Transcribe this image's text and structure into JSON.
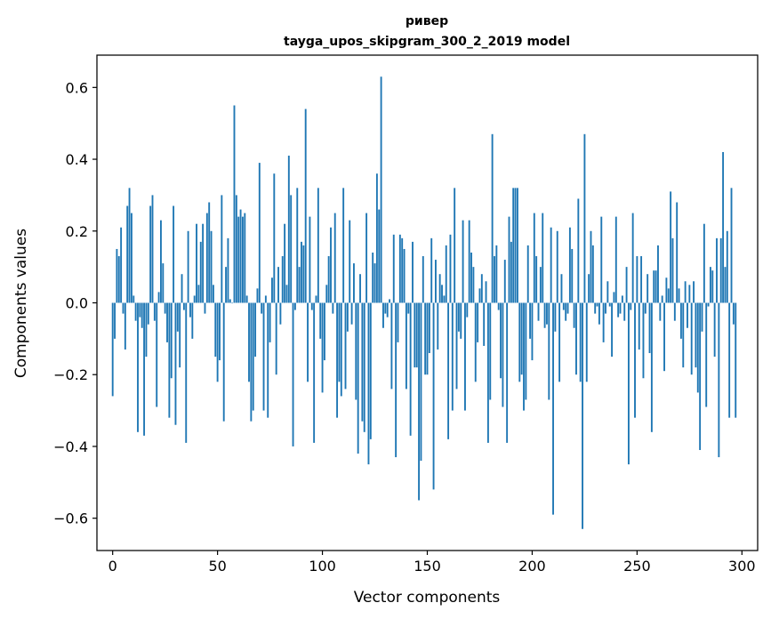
{
  "chart_data": {
    "type": "bar",
    "title": "ривер",
    "subtitle": "tayga_upos_skipgram_300_2_2019 model",
    "xlabel": "Vector components",
    "ylabel": "Components values",
    "xlim": [
      -7.5,
      307.5
    ],
    "ylim": [
      -0.69,
      0.69
    ],
    "xticks": [
      0,
      50,
      100,
      150,
      200,
      250,
      300
    ],
    "xtick_labels": [
      "0",
      "50",
      "100",
      "150",
      "200",
      "250",
      "300"
    ],
    "yticks": [
      -0.6,
      -0.4,
      -0.2,
      0.0,
      0.2,
      0.4,
      0.6
    ],
    "ytick_labels": [
      "−0.6",
      "−0.4",
      "−0.2",
      "0.0",
      "0.2",
      "0.4",
      "0.6"
    ],
    "bar_color": "#1f77b4",
    "grid": false,
    "values": [
      -0.26,
      -0.1,
      0.15,
      0.13,
      0.21,
      -0.03,
      -0.13,
      0.27,
      0.32,
      0.25,
      0.02,
      -0.05,
      -0.36,
      -0.04,
      -0.07,
      -0.37,
      -0.15,
      -0.06,
      0.27,
      0.3,
      -0.05,
      -0.29,
      0.03,
      0.23,
      0.11,
      -0.03,
      -0.11,
      -0.32,
      -0.21,
      0.27,
      -0.34,
      -0.08,
      -0.18,
      0.08,
      -0.02,
      -0.39,
      0.2,
      -0.04,
      -0.1,
      0.02,
      0.22,
      0.05,
      0.17,
      0.22,
      -0.03,
      0.25,
      0.28,
      0.2,
      0.05,
      -0.15,
      -0.22,
      -0.16,
      0.3,
      -0.33,
      0.1,
      0.18,
      0.01,
      0.0,
      0.55,
      0.3,
      0.24,
      0.26,
      0.24,
      0.25,
      0.02,
      -0.22,
      -0.33,
      -0.3,
      -0.15,
      0.04,
      0.39,
      -0.03,
      -0.3,
      0.02,
      -0.32,
      -0.11,
      0.07,
      0.36,
      -0.2,
      0.1,
      -0.06,
      0.13,
      0.22,
      0.05,
      0.41,
      0.3,
      -0.4,
      -0.02,
      0.32,
      0.1,
      0.17,
      0.16,
      0.54,
      -0.22,
      0.24,
      -0.02,
      -0.39,
      0.02,
      0.32,
      -0.1,
      -0.25,
      -0.16,
      0.05,
      0.13,
      0.21,
      -0.03,
      0.25,
      -0.32,
      -0.22,
      -0.26,
      0.32,
      -0.24,
      -0.08,
      0.23,
      -0.06,
      0.11,
      -0.27,
      -0.42,
      0.08,
      -0.33,
      -0.36,
      0.25,
      -0.45,
      -0.38,
      0.14,
      0.11,
      0.36,
      0.26,
      0.63,
      -0.07,
      -0.03,
      -0.04,
      0.01,
      -0.24,
      0.19,
      -0.43,
      -0.11,
      0.19,
      0.18,
      0.15,
      -0.24,
      -0.03,
      -0.37,
      0.17,
      -0.18,
      -0.18,
      -0.55,
      -0.44,
      0.13,
      -0.2,
      -0.2,
      -0.14,
      0.18,
      -0.52,
      0.12,
      -0.13,
      0.08,
      0.05,
      0.02,
      0.16,
      -0.38,
      0.19,
      -0.3,
      0.32,
      -0.24,
      -0.08,
      -0.1,
      0.23,
      -0.3,
      -0.04,
      0.23,
      0.14,
      0.1,
      -0.22,
      -0.11,
      0.04,
      0.08,
      -0.12,
      0.06,
      -0.39,
      -0.27,
      0.47,
      0.13,
      0.16,
      -0.02,
      -0.21,
      -0.29,
      0.12,
      -0.39,
      0.24,
      0.17,
      0.32,
      0.32,
      0.32,
      -0.22,
      -0.2,
      -0.3,
      -0.27,
      0.16,
      -0.1,
      -0.16,
      0.25,
      0.13,
      -0.05,
      0.1,
      0.25,
      -0.07,
      -0.06,
      -0.27,
      0.21,
      -0.59,
      -0.08,
      0.2,
      -0.22,
      0.08,
      -0.02,
      -0.05,
      -0.03,
      0.21,
      0.15,
      -0.07,
      -0.2,
      0.29,
      -0.22,
      -0.63,
      0.47,
      -0.22,
      0.08,
      0.2,
      0.16,
      -0.03,
      -0.01,
      -0.06,
      0.24,
      -0.11,
      -0.03,
      0.06,
      -0.01,
      -0.15,
      0.03,
      0.24,
      -0.04,
      -0.03,
      0.02,
      -0.05,
      0.1,
      -0.45,
      -0.02,
      0.25,
      -0.32,
      0.13,
      -0.13,
      0.13,
      -0.21,
      -0.03,
      0.08,
      -0.14,
      -0.36,
      0.09,
      0.09,
      0.16,
      -0.05,
      0.02,
      -0.19,
      0.07,
      0.04,
      0.31,
      0.18,
      -0.05,
      0.28,
      0.04,
      -0.1,
      -0.18,
      0.06,
      -0.07,
      0.05,
      -0.2,
      0.06,
      -0.18,
      -0.25,
      -0.41,
      -0.08,
      0.22,
      -0.29,
      -0.01,
      0.1,
      0.09,
      -0.15,
      0.18,
      -0.43,
      0.18,
      0.42,
      0.1,
      0.2,
      -0.32,
      0.32,
      -0.06,
      -0.32
    ]
  }
}
